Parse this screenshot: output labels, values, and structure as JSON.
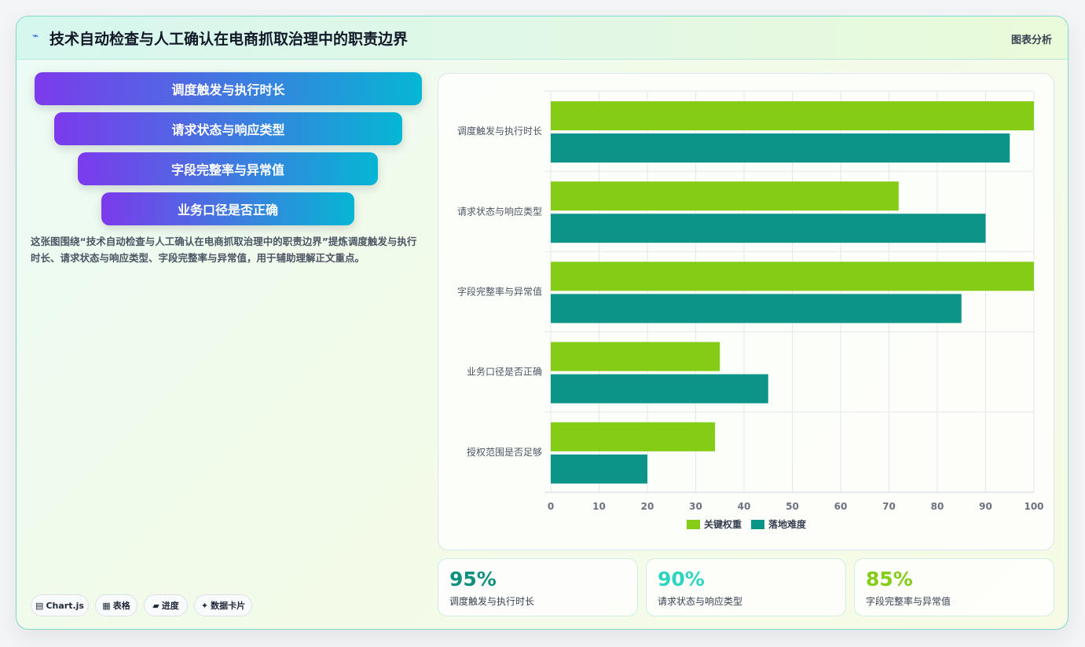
{
  "header": {
    "icon": "chart-spark-icon",
    "title": "技术自动检查与人工确认在电商抓取治理中的职责边界",
    "link": "图表分析"
  },
  "funnel": {
    "steps": [
      "调度触发与执行时长",
      "请求状态与响应类型",
      "字段完整率与异常值",
      "业务口径是否正确"
    ]
  },
  "description": "这张图围绕“技术自动检查与人工确认在电商抓取治理中的职责边界”提炼调度触发与执行时长、请求状态与响应类型、字段完整率与异常值，用于辅助理解正文重点。",
  "tags": [
    {
      "icon": "table-icon",
      "label": "Chart.js"
    },
    {
      "icon": "grid-icon",
      "label": "表格"
    },
    {
      "icon": "folder-icon",
      "label": "进度"
    },
    {
      "icon": "sparkle-icon",
      "label": "数据卡片"
    }
  ],
  "stats": [
    {
      "value": "95%",
      "label": "调度触发与执行时长",
      "color": "#0f8f7d"
    },
    {
      "value": "90%",
      "label": "请求状态与响应类型",
      "color": "#2dd4bf"
    },
    {
      "value": "85%",
      "label": "字段完整率与异常值",
      "color": "#84cc16"
    }
  ],
  "chart_data": {
    "type": "bar",
    "orientation": "horizontal",
    "categories": [
      "调度触发与执行时长",
      "请求状态与响应类型",
      "字段完整率与异常值",
      "业务口径是否正确",
      "授权范围是否足够"
    ],
    "series": [
      {
        "name": "关键权重",
        "values": [
          100,
          72,
          100,
          35,
          34
        ],
        "color": "#84cc16"
      },
      {
        "name": "落地难度",
        "values": [
          95,
          90,
          85,
          45,
          20
        ],
        "color": "#0d9488"
      }
    ],
    "xlim": [
      0,
      100
    ],
    "xticks": [
      0,
      10,
      20,
      30,
      40,
      50,
      60,
      70,
      80,
      90,
      100
    ],
    "grid": true,
    "legend": "bottom"
  }
}
